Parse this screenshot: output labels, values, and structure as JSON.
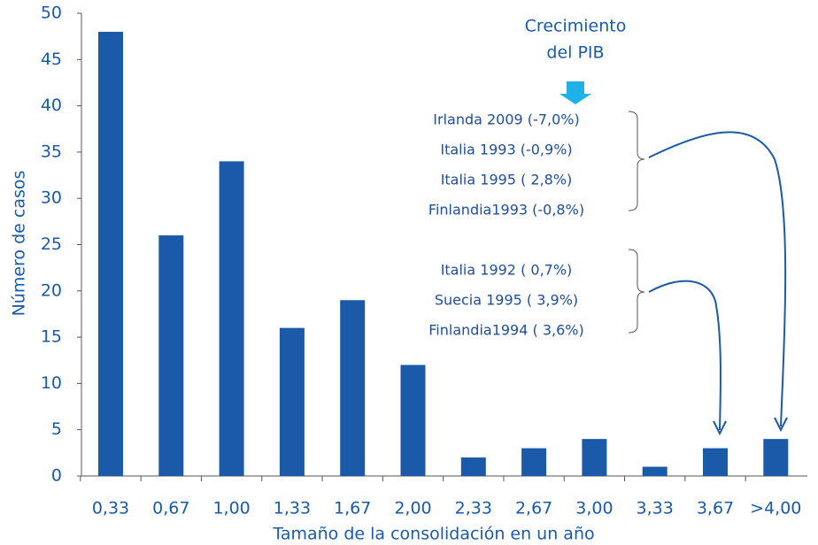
{
  "chart_data": {
    "type": "bar",
    "y_label": "Número de casos",
    "x_label": "Tamaño de la consolidación en un año",
    "categories": [
      "0,33",
      "0,67",
      "1,00",
      "1,33",
      "1,67",
      "2,00",
      "2,33",
      "2,67",
      "3,00",
      "3,33",
      "3,67",
      ">4,00"
    ],
    "values": [
      48,
      26,
      34,
      16,
      19,
      12,
      2,
      3,
      4,
      1,
      3,
      4
    ],
    "color": "#1a5aa8",
    "ylim": [
      0,
      50
    ],
    "yticks": [
      0,
      5,
      10,
      15,
      20,
      25,
      30,
      35,
      40,
      45,
      50
    ],
    "grid": false,
    "annotations": {
      "header": [
        "Crecimiento",
        "del PIB"
      ],
      "groups": [
        [
          "Irlanda 2009 (-7,0%)",
          "Italia 1993 (-0,9%)",
          "Italia 1995 (  2,8%)",
          "Finlandia1993 (-0,8%)"
        ],
        [
          "Italia 1992 ( 0,7%)",
          "Suecia 1995 ( 3,9%)",
          "Finlandia1994 ( 3,6%)"
        ]
      ]
    }
  }
}
